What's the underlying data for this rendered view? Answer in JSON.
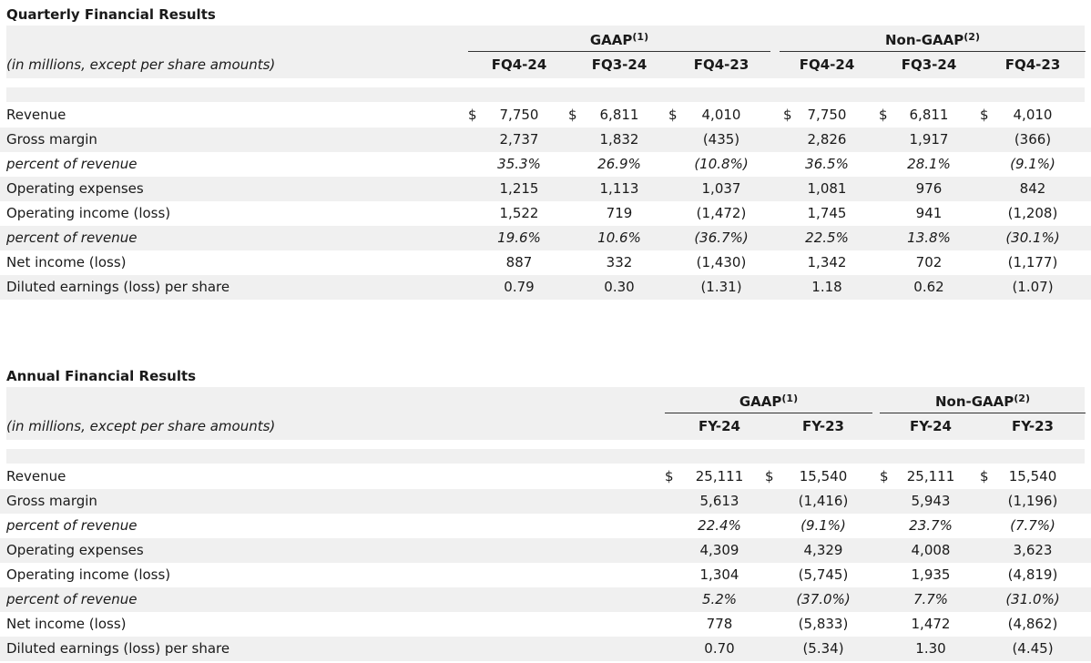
{
  "quarterly": {
    "title": "Quarterly Financial Results",
    "units_note": "(in millions, except per share amounts)",
    "gaap_label": "GAAP",
    "gaap_note": "(1)",
    "nongaap_label": "Non-GAAP",
    "nongaap_note": "(2)",
    "gaap_columns": [
      "FQ4-24",
      "FQ3-24",
      "FQ4-23"
    ],
    "nongaap_columns": [
      "FQ4-24",
      "FQ3-24",
      "FQ4-23"
    ],
    "currency_symbol": "$",
    "rows": [
      {
        "label": "Revenue",
        "italic": false,
        "dollar": true,
        "gaap": [
          "7,750",
          "6,811",
          "4,010"
        ],
        "nongaap": [
          "7,750",
          "6,811",
          "4,010"
        ]
      },
      {
        "label": "Gross margin",
        "italic": false,
        "dollar": false,
        "gaap": [
          "2,737",
          "1,832",
          "(435)"
        ],
        "nongaap": [
          "2,826",
          "1,917",
          "(366)"
        ]
      },
      {
        "label": "percent of revenue",
        "italic": true,
        "dollar": false,
        "gaap": [
          "35.3%",
          "26.9%",
          "(10.8%)"
        ],
        "nongaap": [
          "36.5%",
          "28.1%",
          "(9.1%)"
        ]
      },
      {
        "label": "Operating expenses",
        "italic": false,
        "dollar": false,
        "gaap": [
          "1,215",
          "1,113",
          "1,037"
        ],
        "nongaap": [
          "1,081",
          "976",
          "842"
        ]
      },
      {
        "label": "Operating income (loss)",
        "italic": false,
        "dollar": false,
        "gaap": [
          "1,522",
          "719",
          "(1,472)"
        ],
        "nongaap": [
          "1,745",
          "941",
          "(1,208)"
        ]
      },
      {
        "label": "percent of revenue",
        "italic": true,
        "dollar": false,
        "gaap": [
          "19.6%",
          "10.6%",
          "(36.7%)"
        ],
        "nongaap": [
          "22.5%",
          "13.8%",
          "(30.1%)"
        ]
      },
      {
        "label": "Net income (loss)",
        "italic": false,
        "dollar": false,
        "gaap": [
          "887",
          "332",
          "(1,430)"
        ],
        "nongaap": [
          "1,342",
          "702",
          "(1,177)"
        ]
      },
      {
        "label": "Diluted earnings (loss) per share",
        "italic": false,
        "dollar": false,
        "gaap": [
          "0.79",
          "0.30",
          "(1.31)"
        ],
        "nongaap": [
          "1.18",
          "0.62",
          "(1.07)"
        ]
      }
    ]
  },
  "annual": {
    "title": "Annual Financial Results",
    "units_note": "(in millions, except per share amounts)",
    "gaap_label": "GAAP",
    "gaap_note": "(1)",
    "nongaap_label": "Non-GAAP",
    "nongaap_note": "(2)",
    "gaap_columns": [
      "FY-24",
      "FY-23"
    ],
    "nongaap_columns": [
      "FY-24",
      "FY-23"
    ],
    "currency_symbol": "$",
    "rows": [
      {
        "label": "Revenue",
        "italic": false,
        "dollar": true,
        "gaap": [
          "25,111",
          "15,540"
        ],
        "nongaap": [
          "25,111",
          "15,540"
        ]
      },
      {
        "label": "Gross margin",
        "italic": false,
        "dollar": false,
        "gaap": [
          "5,613",
          "(1,416)"
        ],
        "nongaap": [
          "5,943",
          "(1,196)"
        ]
      },
      {
        "label": "percent of revenue",
        "italic": true,
        "dollar": false,
        "gaap": [
          "22.4%",
          "(9.1%)"
        ],
        "nongaap": [
          "23.7%",
          "(7.7%)"
        ]
      },
      {
        "label": "Operating expenses",
        "italic": false,
        "dollar": false,
        "gaap": [
          "4,309",
          "4,329"
        ],
        "nongaap": [
          "4,008",
          "3,623"
        ]
      },
      {
        "label": "Operating income (loss)",
        "italic": false,
        "dollar": false,
        "gaap": [
          "1,304",
          "(5,745)"
        ],
        "nongaap": [
          "1,935",
          "(4,819)"
        ]
      },
      {
        "label": "percent of revenue",
        "italic": true,
        "dollar": false,
        "gaap": [
          "5.2%",
          "(37.0%)"
        ],
        "nongaap": [
          "7.7%",
          "(31.0%)"
        ]
      },
      {
        "label": "Net income (loss)",
        "italic": false,
        "dollar": false,
        "gaap": [
          "778",
          "(5,833)"
        ],
        "nongaap": [
          "1,472",
          "(4,862)"
        ]
      },
      {
        "label": "Diluted earnings (loss) per share",
        "italic": false,
        "dollar": false,
        "gaap": [
          "0.70",
          "(5.34)"
        ],
        "nongaap": [
          "1.30",
          "(4.45)"
        ]
      }
    ]
  }
}
